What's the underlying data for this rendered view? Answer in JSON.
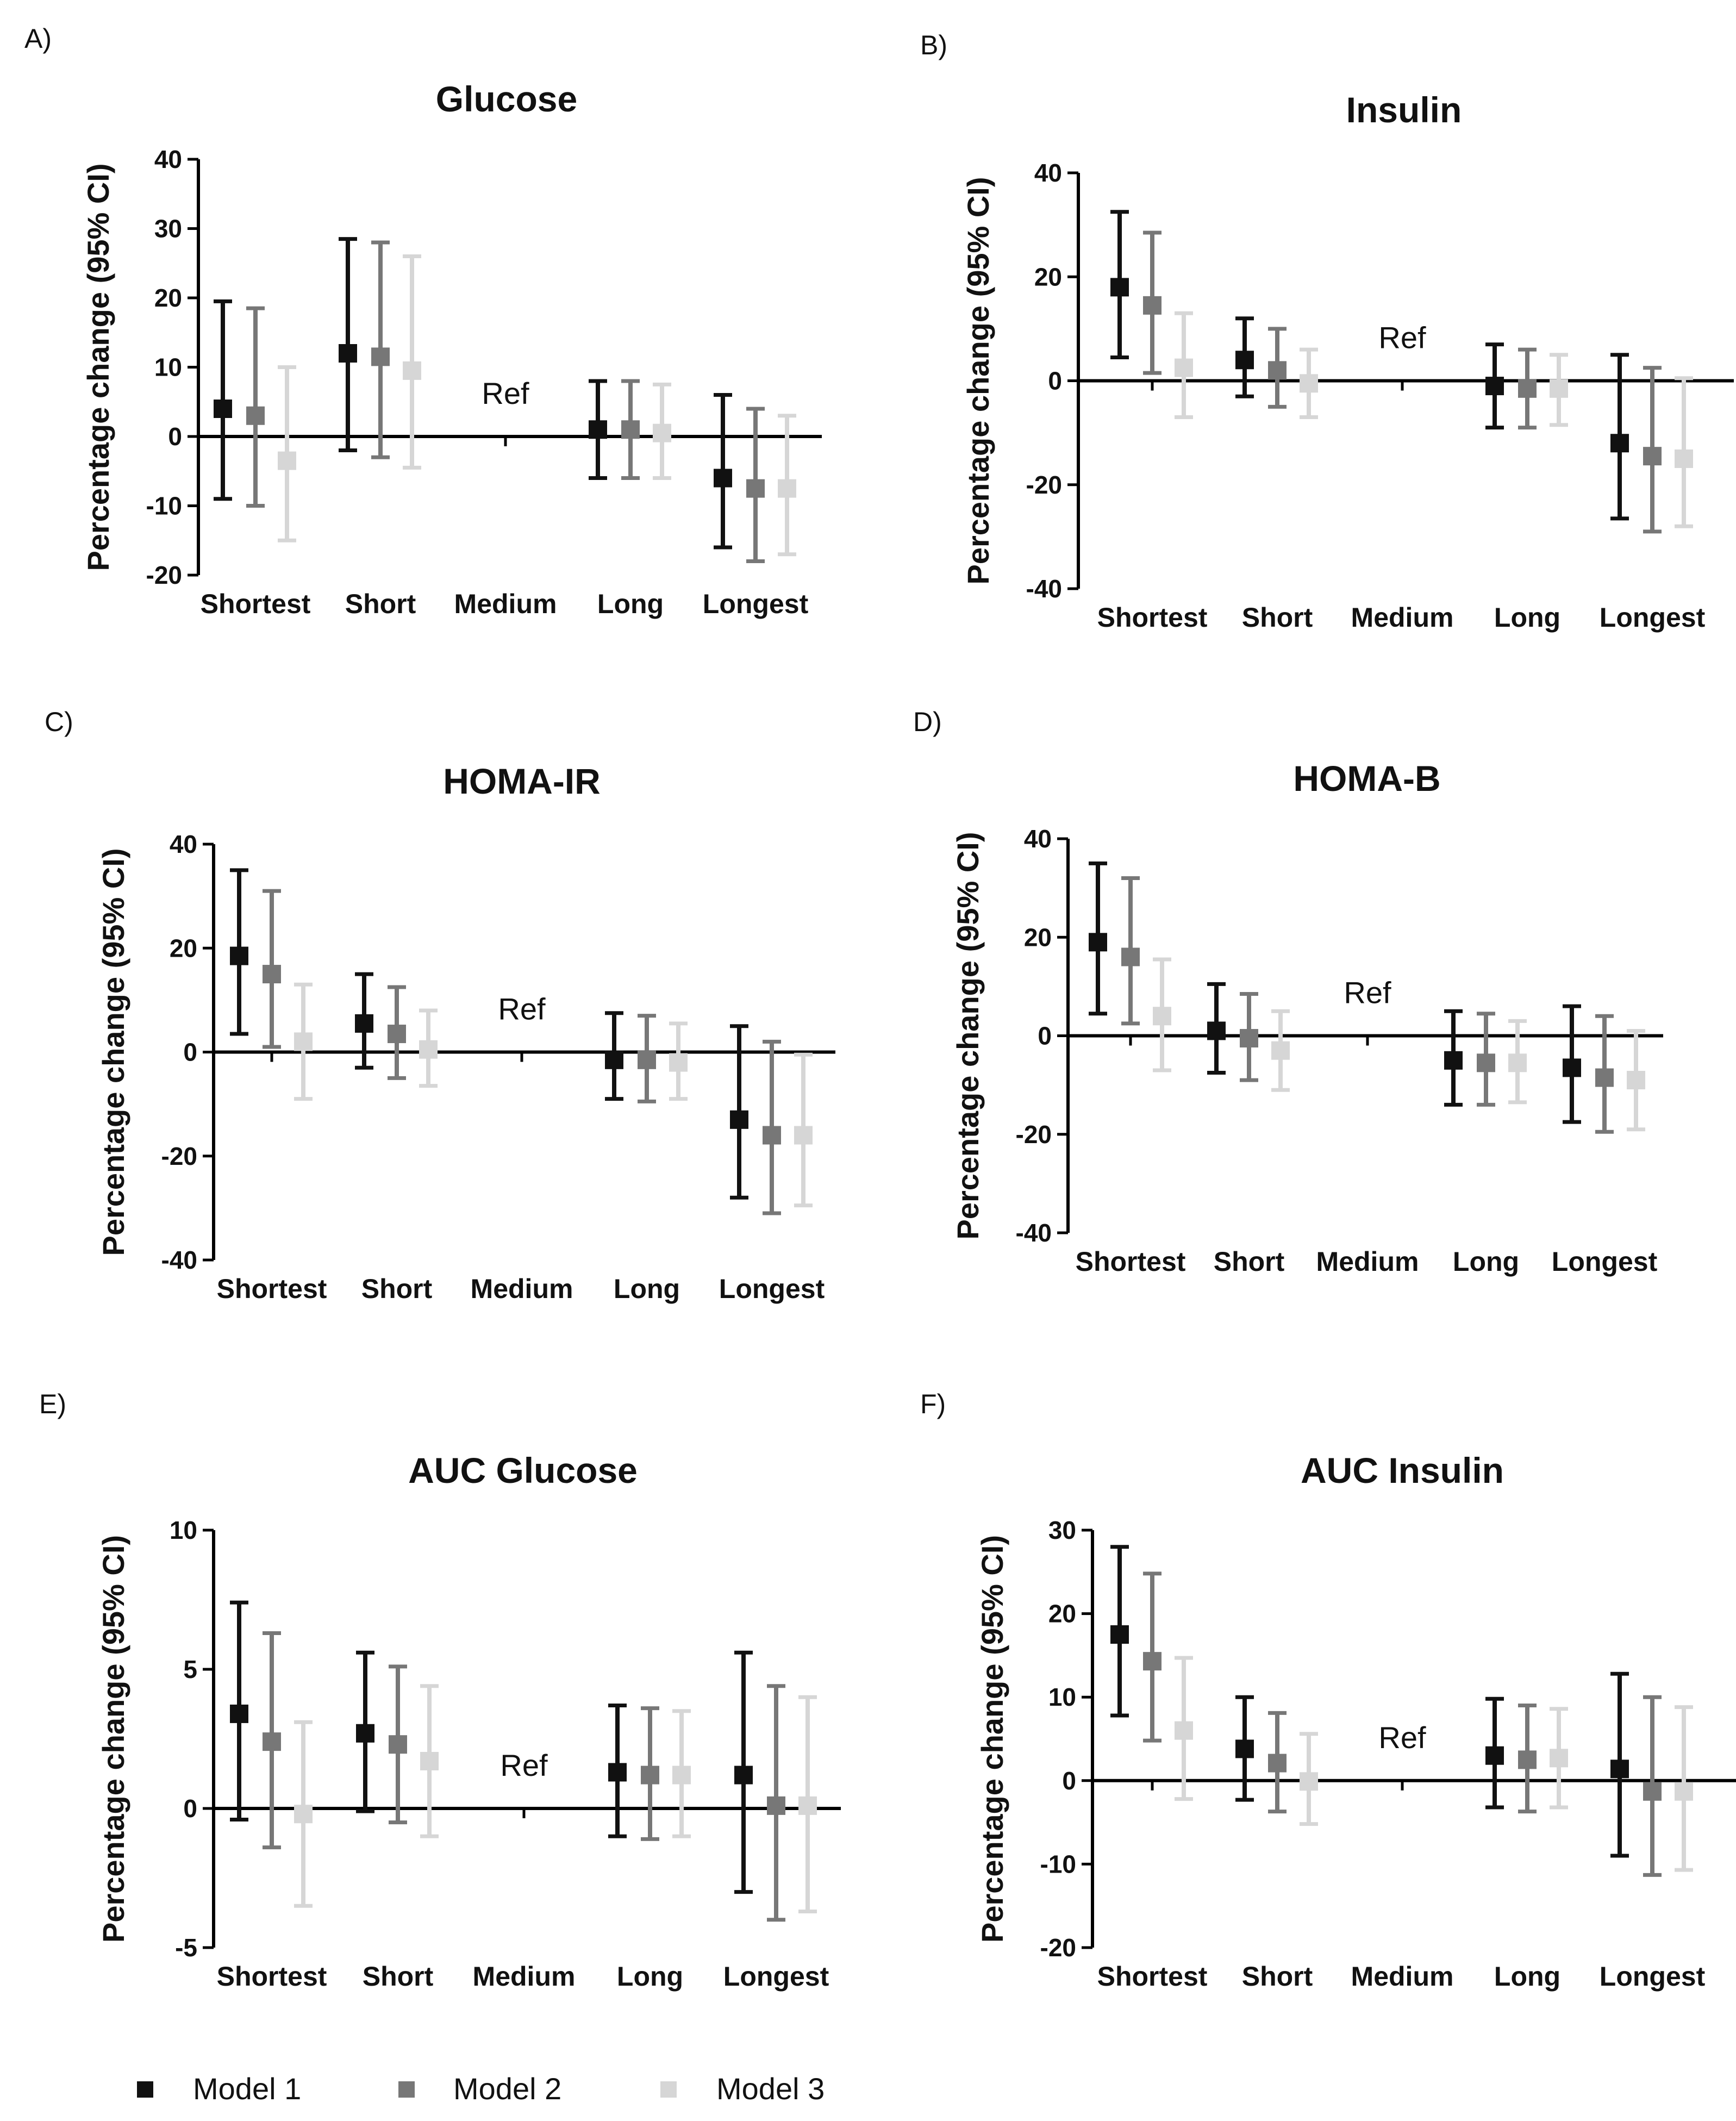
{
  "legend": {
    "items": [
      {
        "label": "Model 1",
        "color": "#111111"
      },
      {
        "label": "Model 2",
        "color": "#777777"
      },
      {
        "label": "Model 3",
        "color": "#d6d6d6"
      }
    ]
  },
  "chart_data": [
    {
      "panel": "A)",
      "type": "scatter",
      "title": "Glucose",
      "ylabel": "Percentage change (95% CI)",
      "ylim": [
        -20,
        40
      ],
      "yticks": [
        -20,
        -10,
        0,
        10,
        20,
        30,
        40
      ],
      "categories": [
        "Shortest",
        "Short",
        "Medium",
        "Long",
        "Longest"
      ],
      "ref_label": "Ref",
      "ref_category": "Medium",
      "series": [
        {
          "name": "Model 1",
          "values": [
            4,
            12,
            null,
            1,
            -6
          ],
          "lower": [
            -9,
            -2,
            null,
            -6,
            -16
          ],
          "upper": [
            19.5,
            28.5,
            null,
            8,
            6
          ]
        },
        {
          "name": "Model 2",
          "values": [
            3,
            11.5,
            null,
            1,
            -7.5
          ],
          "lower": [
            -10,
            -3,
            null,
            -6,
            -18
          ],
          "upper": [
            18.5,
            28,
            null,
            8,
            4
          ]
        },
        {
          "name": "Model 3",
          "values": [
            -3.5,
            9.5,
            null,
            0.5,
            -7.5
          ],
          "lower": [
            -15,
            -4.5,
            null,
            -6,
            -17
          ],
          "upper": [
            10,
            26,
            null,
            7.5,
            3
          ]
        }
      ]
    },
    {
      "panel": "B)",
      "type": "scatter",
      "title": "Insulin",
      "ylabel": "Percentage change (95% CI)",
      "ylim": [
        -40,
        40
      ],
      "yticks": [
        -40,
        -20,
        0,
        20,
        40
      ],
      "categories": [
        "Shortest",
        "Short",
        "Medium",
        "Long",
        "Longest"
      ],
      "ref_label": "Ref",
      "ref_category": "Medium",
      "series": [
        {
          "name": "Model 1",
          "values": [
            18,
            4,
            null,
            -1,
            -12
          ],
          "lower": [
            4.5,
            -3,
            null,
            -9,
            -26.5
          ],
          "upper": [
            32.5,
            12,
            null,
            7,
            5
          ]
        },
        {
          "name": "Model 2",
          "values": [
            14.5,
            2,
            null,
            -1.5,
            -14.5
          ],
          "lower": [
            1.5,
            -5,
            null,
            -9,
            -29
          ],
          "upper": [
            28.5,
            10,
            null,
            6,
            2.5
          ]
        },
        {
          "name": "Model 3",
          "values": [
            2.5,
            -0.5,
            null,
            -1.5,
            -15
          ],
          "lower": [
            -7,
            -7,
            null,
            -8.5,
            -28
          ],
          "upper": [
            13,
            6,
            null,
            5,
            0.5
          ]
        }
      ]
    },
    {
      "panel": "C)",
      "type": "scatter",
      "title": "HOMA-IR",
      "ylabel": "Percentage change (95% CI)",
      "ylim": [
        -40,
        40
      ],
      "yticks": [
        -40,
        -20,
        0,
        20,
        40
      ],
      "categories": [
        "Shortest",
        "Short",
        "Medium",
        "Long",
        "Longest"
      ],
      "ref_label": "Ref",
      "ref_category": "Medium",
      "series": [
        {
          "name": "Model 1",
          "values": [
            18.5,
            5.5,
            null,
            -1.5,
            -13
          ],
          "lower": [
            3.5,
            -3,
            null,
            -9,
            -28
          ],
          "upper": [
            35,
            15,
            null,
            7.5,
            5
          ]
        },
        {
          "name": "Model 2",
          "values": [
            15,
            3.5,
            null,
            -1.5,
            -16
          ],
          "lower": [
            1,
            -5,
            null,
            -9.5,
            -31
          ],
          "upper": [
            31,
            12.5,
            null,
            7,
            2
          ]
        },
        {
          "name": "Model 3",
          "values": [
            2,
            0.5,
            null,
            -2,
            -16
          ],
          "lower": [
            -9,
            -6.5,
            null,
            -9,
            -29.5
          ],
          "upper": [
            13,
            8,
            null,
            5.5,
            -0.5
          ]
        }
      ]
    },
    {
      "panel": "D)",
      "type": "scatter",
      "title": "HOMA-B",
      "ylabel": "Percentage change (95% CI)",
      "ylim": [
        -40,
        40
      ],
      "yticks": [
        -40,
        -20,
        0,
        20,
        40
      ],
      "categories": [
        "Shortest",
        "Short",
        "Medium",
        "Long",
        "Longest"
      ],
      "ref_label": "Ref",
      "ref_category": "Medium",
      "series": [
        {
          "name": "Model 1",
          "values": [
            19,
            1,
            null,
            -5,
            -6.5
          ],
          "lower": [
            4.5,
            -7.5,
            null,
            -14,
            -17.5
          ],
          "upper": [
            35,
            10.5,
            null,
            5,
            6
          ]
        },
        {
          "name": "Model 2",
          "values": [
            16,
            -0.5,
            null,
            -5.5,
            -8.5
          ],
          "lower": [
            2.5,
            -9,
            null,
            -14,
            -19.5
          ],
          "upper": [
            32,
            8.5,
            null,
            4.5,
            4
          ]
        },
        {
          "name": "Model 3",
          "values": [
            4,
            -3,
            null,
            -5.5,
            -9
          ],
          "lower": [
            -7,
            -11,
            null,
            -13.5,
            -19
          ],
          "upper": [
            15.5,
            5,
            null,
            3,
            1
          ]
        }
      ]
    },
    {
      "panel": "E)",
      "type": "scatter",
      "title": "AUC Glucose",
      "ylabel": "Percentage change (95% CI)",
      "ylim": [
        -5,
        10
      ],
      "yticks": [
        -5,
        0,
        5,
        10
      ],
      "categories": [
        "Shortest",
        "Short",
        "Medium",
        "Long",
        "Longest"
      ],
      "ref_label": "Ref",
      "ref_category": "Medium",
      "series": [
        {
          "name": "Model 1",
          "values": [
            3.4,
            2.7,
            null,
            1.3,
            1.2
          ],
          "lower": [
            -0.4,
            -0.1,
            null,
            -1,
            -3
          ],
          "upper": [
            7.4,
            5.6,
            null,
            3.7,
            5.6
          ]
        },
        {
          "name": "Model 2",
          "values": [
            2.4,
            2.3,
            null,
            1.2,
            0.1
          ],
          "lower": [
            -1.4,
            -0.5,
            null,
            -1.1,
            -4
          ],
          "upper": [
            6.3,
            5.1,
            null,
            3.6,
            4.4
          ]
        },
        {
          "name": "Model 3",
          "values": [
            -0.2,
            1.7,
            null,
            1.2,
            0.1
          ],
          "lower": [
            -3.5,
            -1,
            null,
            -1,
            -3.7
          ],
          "upper": [
            3.1,
            4.4,
            null,
            3.5,
            4
          ]
        }
      ]
    },
    {
      "panel": "F)",
      "type": "scatter",
      "title": "AUC Insulin",
      "ylabel": "Percentage change (95% CI)",
      "ylim": [
        -20,
        30
      ],
      "yticks": [
        -20,
        -10,
        0,
        10,
        20,
        30
      ],
      "categories": [
        "Shortest",
        "Short",
        "Medium",
        "Long",
        "Longest"
      ],
      "ref_label": "Ref",
      "ref_category": "Medium",
      "series": [
        {
          "name": "Model 1",
          "values": [
            17.5,
            3.8,
            null,
            3,
            1.4
          ],
          "lower": [
            7.8,
            -2.3,
            null,
            -3.2,
            -9
          ],
          "upper": [
            28,
            10,
            null,
            9.8,
            12.8
          ]
        },
        {
          "name": "Model 2",
          "values": [
            14.3,
            2.1,
            null,
            2.5,
            -1.3
          ],
          "lower": [
            4.8,
            -3.7,
            null,
            -3.7,
            -11.3
          ],
          "upper": [
            24.8,
            8.1,
            null,
            9,
            10
          ]
        },
        {
          "name": "Model 3",
          "values": [
            6,
            -0.1,
            null,
            2.7,
            -1.3
          ],
          "lower": [
            -2.2,
            -5.2,
            null,
            -3.2,
            -10.7
          ],
          "upper": [
            14.7,
            5.6,
            null,
            8.6,
            8.8
          ]
        }
      ]
    }
  ]
}
